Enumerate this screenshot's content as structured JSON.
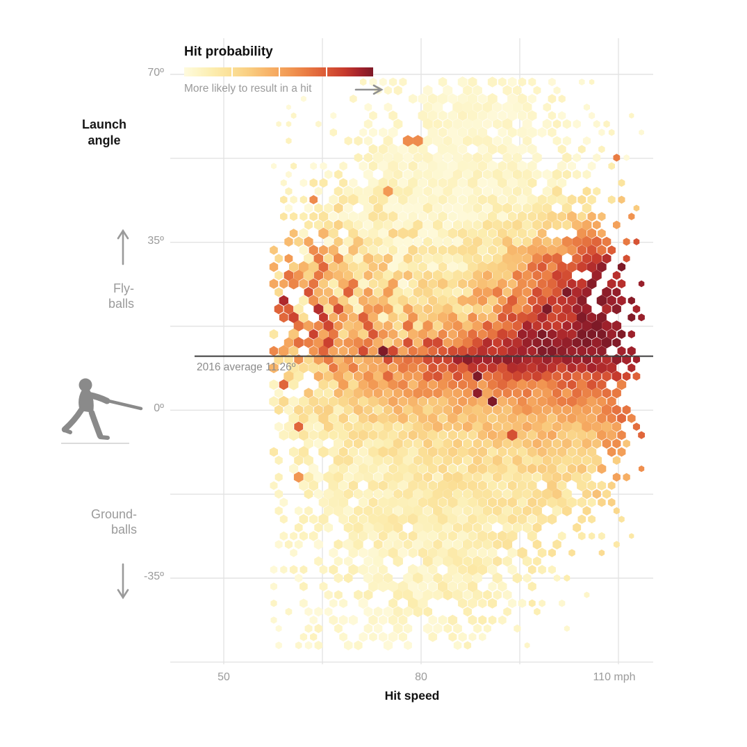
{
  "page": {
    "background": "#FFFFFF"
  },
  "legend": {
    "title": "Hit probability",
    "caption": "More likely to result in a hit",
    "arrow_icon": "arrow-right"
  },
  "y_axis": {
    "label_line1": "Launch",
    "label_line2": "angle",
    "ticks": [
      {
        "value": 70,
        "label": "70º"
      },
      {
        "value": 35,
        "label": "35º"
      },
      {
        "value": 0,
        "label": "0º"
      },
      {
        "value": -35,
        "label": "-35º"
      }
    ]
  },
  "x_axis": {
    "label": "Hit speed",
    "ticks": [
      {
        "value": 50,
        "label": "50"
      },
      {
        "value": 80,
        "label": "80"
      },
      {
        "value": 110,
        "label": "110 mph"
      }
    ]
  },
  "zones": {
    "fly_line1": "Fly-",
    "fly_line2": "balls",
    "ground_line1": "Ground-",
    "ground_line2": "balls",
    "up_arrow_icon": "arrow-up",
    "down_arrow_icon": "arrow-down",
    "batter_icon": "baseball-batter-swinging-silhouette"
  },
  "annotation": {
    "label": "2016 average 11.26º"
  },
  "chart_data": {
    "type": "hexbin",
    "title": "Hit probability",
    "xlabel": "Hit speed",
    "ylabel": "Launch angle",
    "xlim": [
      42,
      116
    ],
    "ylim": [
      -52.5,
      72.5
    ],
    "x_gridlines": [
      50,
      65,
      80,
      95,
      110
    ],
    "y_gridlines": [
      70,
      52.5,
      35,
      17.5,
      0,
      -17.5,
      -35,
      -52.5
    ],
    "grid_on": true,
    "legend_position": "top-left",
    "average_line": {
      "angle": 11.26,
      "label": "2016 average 11.26º",
      "color": "#3d3d3d"
    },
    "color_scale": {
      "meaning": "hit probability, light = unlikely hit, dark = likely hit",
      "stops": [
        [
          0.0,
          "#FEFADE"
        ],
        [
          0.06,
          "#FDF6CB"
        ],
        [
          0.15,
          "#FCEDAF"
        ],
        [
          0.25,
          "#FBDF96"
        ],
        [
          0.35,
          "#F9CC7F"
        ],
        [
          0.45,
          "#F7B268"
        ],
        [
          0.55,
          "#F29A54"
        ],
        [
          0.65,
          "#E97B43"
        ],
        [
          0.75,
          "#DB5A36"
        ],
        [
          0.85,
          "#C63A2D"
        ],
        [
          0.93,
          "#A3222C"
        ],
        [
          1.0,
          "#7E1A27"
        ]
      ]
    },
    "speed_bins": [
      45,
      55,
      65,
      75,
      85,
      95,
      105,
      115
    ],
    "angle_bins": [
      70,
      60,
      50,
      40,
      30,
      20,
      15,
      11,
      5,
      0,
      -10,
      -20,
      -30,
      -40,
      -50
    ],
    "hit_probability_pct": [
      [
        4,
        4,
        4,
        4,
        4,
        5,
        5,
        5
      ],
      [
        4,
        4,
        5,
        5,
        5,
        5,
        6,
        6
      ],
      [
        5,
        5,
        6,
        6,
        6,
        6,
        8,
        10
      ],
      [
        6,
        10,
        14,
        10,
        8,
        12,
        35,
        55
      ],
      [
        8,
        30,
        40,
        22,
        14,
        50,
        90,
        92
      ],
      [
        10,
        45,
        55,
        32,
        28,
        70,
        95,
        97
      ],
      [
        10,
        42,
        55,
        50,
        62,
        92,
        97,
        95
      ],
      [
        8,
        30,
        50,
        72,
        92,
        96,
        97,
        92
      ],
      [
        6,
        15,
        30,
        48,
        58,
        62,
        68,
        75
      ],
      [
        5,
        10,
        20,
        32,
        42,
        48,
        52,
        70
      ],
      [
        4,
        8,
        12,
        16,
        22,
        26,
        32,
        55
      ],
      [
        4,
        6,
        10,
        13,
        16,
        20,
        25,
        40
      ],
      [
        4,
        5,
        8,
        10,
        12,
        14,
        18,
        25
      ],
      [
        4,
        5,
        6,
        8,
        10,
        10,
        12,
        15
      ],
      [
        4,
        4,
        5,
        6,
        8,
        8,
        10,
        12
      ]
    ],
    "density": [
      [
        0,
        0,
        0.05,
        0.35,
        0.55,
        0.45,
        0.1,
        0
      ],
      [
        0,
        0,
        0.2,
        0.55,
        0.75,
        0.65,
        0.3,
        0
      ],
      [
        0,
        0.05,
        0.35,
        0.7,
        0.85,
        0.75,
        0.45,
        0.02
      ],
      [
        0,
        0.18,
        0.55,
        0.85,
        0.95,
        0.85,
        0.55,
        0.06
      ],
      [
        0,
        0.32,
        0.75,
        0.95,
        1,
        0.95,
        0.7,
        0.1
      ],
      [
        0,
        0.42,
        0.85,
        1,
        1,
        1,
        0.8,
        0.15
      ],
      [
        0,
        0.45,
        0.88,
        1,
        1,
        1,
        0.85,
        0.18
      ],
      [
        0,
        0.45,
        0.88,
        1,
        1,
        1,
        0.9,
        0.2
      ],
      [
        0,
        0.42,
        0.85,
        1,
        1,
        1,
        0.9,
        0.22
      ],
      [
        0,
        0.4,
        0.82,
        1,
        1,
        1,
        0.88,
        0.18
      ],
      [
        0,
        0.32,
        0.72,
        0.95,
        1,
        0.95,
        0.78,
        0.1
      ],
      [
        0,
        0.28,
        0.6,
        0.88,
        0.92,
        0.82,
        0.5,
        0
      ],
      [
        0,
        0.22,
        0.5,
        0.72,
        0.8,
        0.6,
        0.22,
        0
      ],
      [
        0,
        0.18,
        0.45,
        0.6,
        0.62,
        0.4,
        0.06,
        0
      ],
      [
        0,
        0.1,
        0.4,
        0.48,
        0.4,
        0.12,
        0,
        0
      ]
    ],
    "noise_pct": [
      [
        4,
        4,
        4,
        4,
        4,
        4,
        5,
        5
      ],
      [
        4,
        5,
        5,
        5,
        5,
        5,
        6,
        6
      ],
      [
        5,
        8,
        8,
        6,
        6,
        6,
        8,
        8
      ],
      [
        6,
        18,
        22,
        15,
        10,
        12,
        12,
        10
      ],
      [
        8,
        30,
        35,
        28,
        15,
        18,
        8,
        6
      ],
      [
        8,
        32,
        38,
        30,
        22,
        15,
        5,
        5
      ],
      [
        8,
        28,
        32,
        28,
        18,
        6,
        4,
        6
      ],
      [
        8,
        20,
        25,
        18,
        8,
        4,
        4,
        6
      ],
      [
        6,
        12,
        18,
        14,
        10,
        10,
        10,
        12
      ],
      [
        5,
        10,
        14,
        12,
        10,
        10,
        10,
        15
      ],
      [
        4,
        8,
        10,
        10,
        10,
        10,
        12,
        20
      ],
      [
        4,
        6,
        8,
        8,
        8,
        10,
        12,
        15
      ],
      [
        4,
        5,
        6,
        8,
        8,
        8,
        10,
        10
      ],
      [
        4,
        4,
        6,
        6,
        8,
        8,
        8,
        8
      ],
      [
        4,
        4,
        5,
        6,
        6,
        6,
        8,
        8
      ]
    ]
  }
}
